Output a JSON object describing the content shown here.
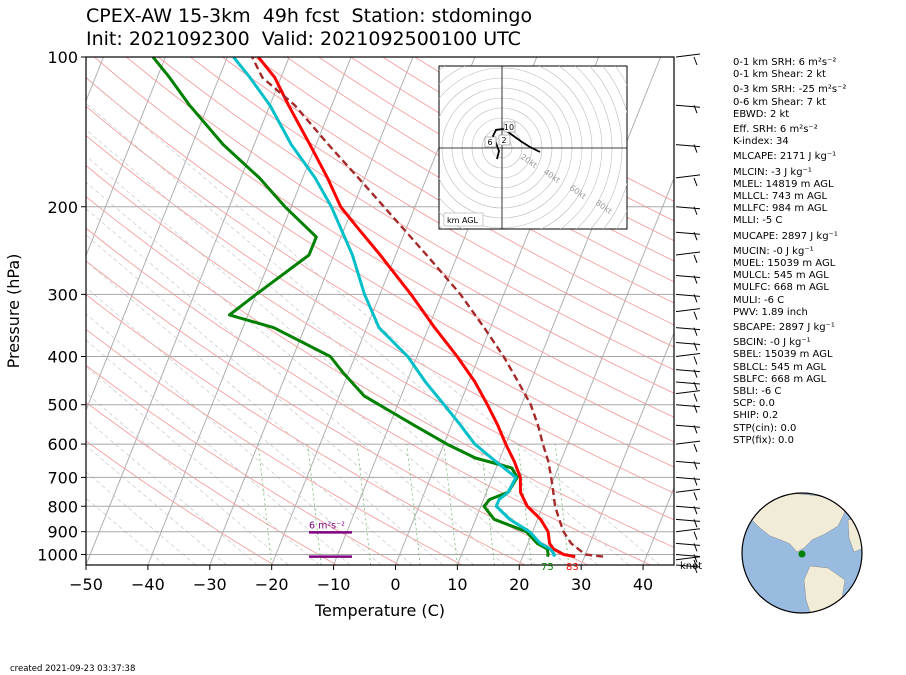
{
  "header": {
    "title_line1": "CPEX-AW 15-3km  49h fcst  Station: stdomingo",
    "title_line2": "Init: 2021092300  Valid: 2021092500100 UTC"
  },
  "chart_data": {
    "type": "line",
    "subtype": "skew-T log-P diagram",
    "xlabel": "Temperature (C)",
    "ylabel": "Pressure (hPa)",
    "xlim": [
      -50,
      45
    ],
    "ylim": [
      1050,
      100
    ],
    "y_scale": "log",
    "skew": "isotherms slant up to the right",
    "x_ticks": [
      -50,
      -40,
      -30,
      -20,
      -10,
      0,
      10,
      20,
      30,
      40
    ],
    "y_ticks": [
      100,
      200,
      300,
      400,
      500,
      600,
      700,
      800,
      900,
      1000
    ],
    "grid": true,
    "series": [
      {
        "name": "temperature",
        "color": "#ff0000",
        "points": [
          [
            1010,
            28.5
          ],
          [
            1000,
            26.5
          ],
          [
            975,
            24.5
          ],
          [
            950,
            23.5
          ],
          [
            900,
            22.5
          ],
          [
            850,
            20.5
          ],
          [
            800,
            17.5
          ],
          [
            750,
            15.5
          ],
          [
            700,
            14.5
          ],
          [
            650,
            12.5
          ],
          [
            600,
            10.0
          ],
          [
            550,
            7.5
          ],
          [
            500,
            4.5
          ],
          [
            450,
            1.0
          ],
          [
            400,
            -3.5
          ],
          [
            350,
            -9.0
          ],
          [
            300,
            -15.0
          ],
          [
            250,
            -22.5
          ],
          [
            220,
            -28.0
          ],
          [
            200,
            -32.0
          ],
          [
            175,
            -36.0
          ],
          [
            150,
            -41.0
          ],
          [
            125,
            -47.0
          ],
          [
            110,
            -51.0
          ],
          [
            100,
            -55.0
          ]
        ]
      },
      {
        "name": "dewpoint",
        "color": "#008000",
        "points": [
          [
            1010,
            24.0
          ],
          [
            1000,
            24.0
          ],
          [
            975,
            23.5
          ],
          [
            950,
            21.5
          ],
          [
            900,
            19.0
          ],
          [
            850,
            13.0
          ],
          [
            800,
            10.5
          ],
          [
            775,
            11.0
          ],
          [
            750,
            13.5
          ],
          [
            700,
            14.0
          ],
          [
            670,
            12.5
          ],
          [
            640,
            6.0
          ],
          [
            600,
            0.5
          ],
          [
            550,
            -6.0
          ],
          [
            480,
            -16.0
          ],
          [
            430,
            -21.0
          ],
          [
            400,
            -24.0
          ],
          [
            350,
            -35.0
          ],
          [
            330,
            -43.0
          ],
          [
            300,
            -40.0
          ],
          [
            250,
            -34.0
          ],
          [
            230,
            -34.0
          ],
          [
            200,
            -41.0
          ],
          [
            175,
            -47.0
          ],
          [
            150,
            -55.0
          ],
          [
            125,
            -63.0
          ],
          [
            110,
            -68.0
          ],
          [
            100,
            -72.0
          ]
        ]
      },
      {
        "name": "wet-bulb",
        "color": "#00bfc8",
        "points": [
          [
            1010,
            25.0
          ],
          [
            1000,
            25.0
          ],
          [
            975,
            24.0
          ],
          [
            950,
            22.0
          ],
          [
            900,
            19.5
          ],
          [
            850,
            15.5
          ],
          [
            800,
            12.5
          ],
          [
            775,
            12.5
          ],
          [
            750,
            13.5
          ],
          [
            700,
            13.8
          ],
          [
            650,
            9.5
          ],
          [
            600,
            5.0
          ],
          [
            550,
            1.5
          ],
          [
            500,
            -2.5
          ],
          [
            450,
            -7.0
          ],
          [
            400,
            -11.5
          ],
          [
            350,
            -18.0
          ],
          [
            300,
            -22.5
          ],
          [
            250,
            -27.0
          ],
          [
            200,
            -33.5
          ],
          [
            175,
            -38.0
          ],
          [
            150,
            -44.0
          ],
          [
            125,
            -50.0
          ],
          [
            110,
            -55.0
          ],
          [
            100,
            -59.0
          ]
        ]
      },
      {
        "name": "parcel",
        "color": "#a52a2a",
        "style": "dashed",
        "points": [
          [
            1010,
            33.0
          ],
          [
            1000,
            30.0
          ],
          [
            950,
            27.0
          ],
          [
            900,
            25.0
          ],
          [
            850,
            23.5
          ],
          [
            800,
            22.0
          ],
          [
            750,
            20.8
          ],
          [
            700,
            19.5
          ],
          [
            650,
            18.0
          ],
          [
            600,
            16.0
          ],
          [
            550,
            14.0
          ],
          [
            500,
            11.5
          ],
          [
            450,
            8.0
          ],
          [
            400,
            4.0
          ],
          [
            350,
            -1.0
          ],
          [
            300,
            -7.0
          ],
          [
            250,
            -15.0
          ],
          [
            200,
            -25.0
          ],
          [
            175,
            -31.0
          ],
          [
            150,
            -38.0
          ],
          [
            125,
            -46.0
          ],
          [
            110,
            -53.0
          ],
          [
            100,
            -56.0
          ]
        ]
      }
    ],
    "surface_labels": {
      "dewpoint": "75",
      "temperature": "83"
    },
    "srh_bars": [
      {
        "label": "6 m²s⁻²",
        "color": "#800080",
        "bottom_p": 1010,
        "top_p": 903
      }
    ],
    "wind_units": "knot",
    "hodograph": {
      "ring_labels": [
        "20kt",
        "40kt",
        "60kt",
        "80kt"
      ],
      "height_markers": [
        "10",
        "6",
        "2"
      ],
      "legend": "km AGL"
    },
    "globe_marker": {
      "color": "#008000"
    }
  },
  "stats": {
    "lines": [
      "0-1 km SRH: 6 m²s⁻²",
      "0-1 km Shear: 2 kt",
      "0-3 km SRH: -25 m²s⁻²",
      "0-6 km Shear: 7 kt",
      "EBWD: 2 kt",
      "Eff. SRH: 6 m²s⁻²",
      "K-index: 34",
      "MLCAPE: 2171 J kg⁻¹",
      "MLCIN: -3 J kg⁻¹",
      "MLEL: 14819 m AGL",
      "MLLCL: 743 m AGL",
      "MLLFC: 984 m AGL",
      "MLLI: -5 C",
      "MUCAPE: 2897 J kg⁻¹",
      "MUCIN: -0 J kg⁻¹",
      "MUEL: 15039 m AGL",
      "MULCL: 545 m AGL",
      "MULFC: 668 m AGL",
      "MULI: -6 C",
      "PWV: 1.89 inch",
      "SBCAPE: 2897 J kg⁻¹",
      "SBCIN: -0 J kg⁻¹",
      "SBEL: 15039 m AGL",
      "SBLCL: 545 m AGL",
      "SBLFC: 668 m AGL",
      "SBLI: -6 C",
      "SCP: 0.0",
      "SHIP: 0.2",
      "STP(cin): 0.0",
      "STP(fix): 0.0"
    ]
  },
  "footer": {
    "created": "created 2021-09-23 03:37:38"
  }
}
